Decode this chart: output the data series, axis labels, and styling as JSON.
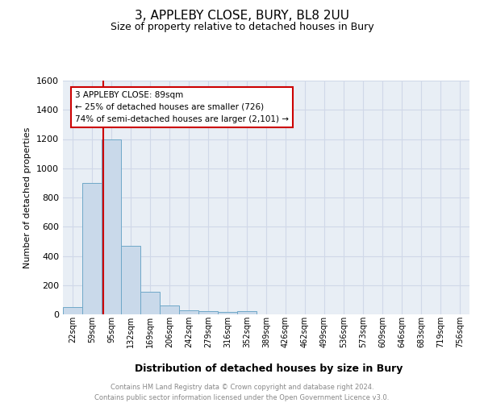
{
  "title1": "3, APPLEBY CLOSE, BURY, BL8 2UU",
  "title2": "Size of property relative to detached houses in Bury",
  "xlabel": "Distribution of detached houses by size in Bury",
  "ylabel": "Number of detached properties",
  "bar_labels": [
    "22sqm",
    "59sqm",
    "95sqm",
    "132sqm",
    "169sqm",
    "206sqm",
    "242sqm",
    "279sqm",
    "316sqm",
    "352sqm",
    "389sqm",
    "426sqm",
    "462sqm",
    "499sqm",
    "536sqm",
    "573sqm",
    "609sqm",
    "646sqm",
    "683sqm",
    "719sqm",
    "756sqm"
  ],
  "bar_values": [
    50,
    900,
    1200,
    470,
    155,
    60,
    30,
    20,
    15,
    20,
    0,
    0,
    0,
    0,
    0,
    0,
    0,
    0,
    0,
    0,
    0
  ],
  "bar_color": "#c9d9ea",
  "bar_edge_color": "#6fa8c8",
  "grid_color": "#d0d8e8",
  "background_color": "#e8eef5",
  "ylim": [
    0,
    1600
  ],
  "yticks": [
    0,
    200,
    400,
    600,
    800,
    1000,
    1200,
    1400,
    1600
  ],
  "property_line_color": "#cc0000",
  "annotation_box_text": "3 APPLEBY CLOSE: 89sqm\n← 25% of detached houses are smaller (726)\n74% of semi-detached houses are larger (2,101) →",
  "annotation_box_color": "#cc0000",
  "footer_text": "Contains HM Land Registry data © Crown copyright and database right 2024.\nContains public sector information licensed under the Open Government Licence v3.0.",
  "footer_color": "#888888"
}
